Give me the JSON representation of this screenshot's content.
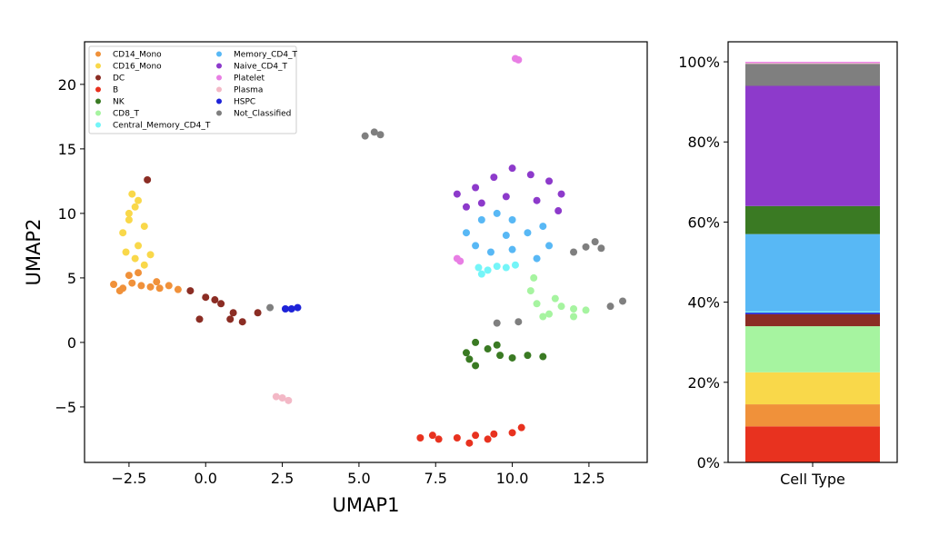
{
  "chart_data": [
    {
      "type": "scatter",
      "xlabel": "UMAP1",
      "ylabel": "UMAP2",
      "xlim": [
        -3.95,
        14.4
      ],
      "ylim": [
        -9.3,
        23.3
      ],
      "xticks": [
        -2.5,
        0.0,
        2.5,
        5.0,
        7.5,
        10.0,
        12.5
      ],
      "xtick_labels": [
        "−2.5",
        "0.0",
        "2.5",
        "5.0",
        "7.5",
        "10.0",
        "12.5"
      ],
      "yticks": [
        -5,
        0,
        5,
        10,
        15,
        20
      ],
      "ytick_labels": [
        "−5",
        "0",
        "5",
        "10",
        "15",
        "20"
      ],
      "legend_position": "top-left",
      "series": [
        {
          "name": "CD14_Mono",
          "color": "#f0913a",
          "points": [
            [
              -3.0,
              4.5
            ],
            [
              -2.7,
              4.2
            ],
            [
              -2.4,
              4.6
            ],
            [
              -2.1,
              4.4
            ],
            [
              -1.8,
              4.3
            ],
            [
              -1.5,
              4.2
            ],
            [
              -1.2,
              4.4
            ],
            [
              -0.9,
              4.1
            ],
            [
              -2.5,
              5.2
            ],
            [
              -2.2,
              5.4
            ],
            [
              -2.8,
              4.0
            ],
            [
              -1.6,
              4.7
            ]
          ]
        },
        {
          "name": "CD16_Mono",
          "color": "#f9d84a",
          "points": [
            [
              -2.7,
              8.5
            ],
            [
              -2.5,
              9.5
            ],
            [
              -2.3,
              10.5
            ],
            [
              -2.4,
              11.5
            ],
            [
              -2.0,
              9.0
            ],
            [
              -2.2,
              7.5
            ],
            [
              -2.6,
              7.0
            ],
            [
              -2.0,
              6.0
            ],
            [
              -2.3,
              6.5
            ],
            [
              -2.5,
              10.0
            ],
            [
              -2.2,
              11.0
            ],
            [
              -1.8,
              6.8
            ]
          ]
        },
        {
          "name": "DC",
          "color": "#8b2d24",
          "points": [
            [
              -0.5,
              4.0
            ],
            [
              0.0,
              3.5
            ],
            [
              0.5,
              3.0
            ],
            [
              0.9,
              2.3
            ],
            [
              1.2,
              1.6
            ],
            [
              0.8,
              1.8
            ],
            [
              -0.2,
              1.8
            ],
            [
              -1.9,
              12.6
            ],
            [
              1.7,
              2.3
            ],
            [
              0.3,
              3.3
            ]
          ]
        },
        {
          "name": "B",
          "color": "#e8321f",
          "points": [
            [
              7.0,
              -7.4
            ],
            [
              7.6,
              -7.5
            ],
            [
              8.2,
              -7.4
            ],
            [
              8.8,
              -7.2
            ],
            [
              9.4,
              -7.1
            ],
            [
              10.0,
              -7.0
            ],
            [
              10.3,
              -6.6
            ],
            [
              8.6,
              -7.8
            ],
            [
              9.2,
              -7.5
            ],
            [
              7.4,
              -7.2
            ]
          ]
        },
        {
          "name": "NK",
          "color": "#3a7a23",
          "points": [
            [
              8.6,
              -1.3
            ],
            [
              8.8,
              0.0
            ],
            [
              9.2,
              -0.5
            ],
            [
              9.6,
              -1.0
            ],
            [
              10.0,
              -1.2
            ],
            [
              10.5,
              -1.0
            ],
            [
              11.0,
              -1.1
            ],
            [
              8.8,
              -1.8
            ],
            [
              9.5,
              -0.2
            ],
            [
              8.5,
              -0.8
            ]
          ]
        },
        {
          "name": "CD8_T",
          "color": "#a6f4a0",
          "points": [
            [
              10.6,
              4.0
            ],
            [
              10.8,
              3.0
            ],
            [
              11.2,
              2.2
            ],
            [
              11.6,
              2.8
            ],
            [
              12.0,
              2.6
            ],
            [
              12.4,
              2.5
            ],
            [
              12.0,
              2.0
            ],
            [
              11.4,
              3.4
            ],
            [
              10.7,
              5.0
            ],
            [
              11.0,
              2.0
            ]
          ]
        },
        {
          "name": "Central_Memory_CD4_T",
          "color": "#74f5f8",
          "points": [
            [
              8.9,
              5.8
            ],
            [
              9.2,
              5.6
            ],
            [
              9.5,
              5.9
            ],
            [
              9.8,
              5.8
            ],
            [
              10.1,
              6.0
            ],
            [
              9.0,
              5.3
            ]
          ]
        },
        {
          "name": "Memory_CD4_T",
          "color": "#58b8f5",
          "points": [
            [
              8.5,
              8.5
            ],
            [
              9.0,
              9.5
            ],
            [
              9.5,
              10.0
            ],
            [
              10.0,
              9.5
            ],
            [
              10.5,
              8.5
            ],
            [
              11.0,
              9.0
            ],
            [
              11.2,
              7.5
            ],
            [
              10.8,
              6.5
            ],
            [
              10.0,
              7.2
            ],
            [
              9.3,
              7.0
            ],
            [
              8.8,
              7.5
            ],
            [
              9.8,
              8.3
            ]
          ]
        },
        {
          "name": "Naive_CD4_T",
          "color": "#8d3acb",
          "points": [
            [
              8.2,
              11.5
            ],
            [
              8.8,
              12.0
            ],
            [
              9.4,
              12.8
            ],
            [
              10.0,
              13.5
            ],
            [
              10.6,
              13.0
            ],
            [
              11.2,
              12.5
            ],
            [
              11.6,
              11.5
            ],
            [
              9.0,
              10.8
            ],
            [
              9.8,
              11.3
            ],
            [
              10.8,
              11.0
            ],
            [
              11.5,
              10.2
            ],
            [
              8.5,
              10.5
            ]
          ]
        },
        {
          "name": "Platelet",
          "color": "#e87ee4",
          "points": [
            [
              10.1,
              22.0
            ],
            [
              10.2,
              21.9
            ],
            [
              8.2,
              6.5
            ],
            [
              8.3,
              6.3
            ]
          ]
        },
        {
          "name": "Plasma",
          "color": "#f3b8c6",
          "points": [
            [
              2.3,
              -4.2
            ],
            [
              2.5,
              -4.3
            ],
            [
              2.7,
              -4.5
            ]
          ]
        },
        {
          "name": "HSPC",
          "color": "#1e23d8",
          "points": [
            [
              2.6,
              2.6
            ],
            [
              2.8,
              2.6
            ],
            [
              3.0,
              2.7
            ]
          ]
        },
        {
          "name": "Not_Classified",
          "color": "#7f7f7f",
          "points": [
            [
              5.2,
              16.0
            ],
            [
              5.5,
              16.3
            ],
            [
              5.7,
              16.1
            ],
            [
              12.4,
              7.4
            ],
            [
              12.7,
              7.8
            ],
            [
              12.9,
              7.3
            ],
            [
              12.0,
              7.0
            ],
            [
              13.2,
              2.8
            ],
            [
              13.6,
              3.2
            ],
            [
              9.5,
              1.5
            ],
            [
              10.2,
              1.6
            ],
            [
              2.1,
              2.7
            ]
          ]
        }
      ]
    },
    {
      "type": "bar",
      "stacked": true,
      "categories": [
        "Cell Type"
      ],
      "ylim": [
        0,
        1.05
      ],
      "yticks": [
        0,
        0.2,
        0.4,
        0.6,
        0.8,
        1.0
      ],
      "ytick_labels": [
        "0%",
        "20%",
        "40%",
        "60%",
        "80%",
        "100%"
      ],
      "series": [
        {
          "color": "#e8321f",
          "value": 0.09
        },
        {
          "color": "#f0913a",
          "value": 0.055
        },
        {
          "color": "#f9d84a",
          "value": 0.08
        },
        {
          "color": "#a6f4a0",
          "value": 0.115
        },
        {
          "color": "#8b2d24",
          "value": 0.03
        },
        {
          "color": "#1e23d8",
          "value": 0.004
        },
        {
          "color": "#74f5f8",
          "value": 0.003
        },
        {
          "color": "#58b8f5",
          "value": 0.193
        },
        {
          "color": "#3a7a23",
          "value": 0.07
        },
        {
          "color": "#8d3acb",
          "value": 0.3
        },
        {
          "color": "#7f7f7f",
          "value": 0.055
        },
        {
          "color": "#f3b8c6",
          "value": 0.002
        },
        {
          "color": "#e87ee4",
          "value": 0.003
        }
      ]
    }
  ]
}
